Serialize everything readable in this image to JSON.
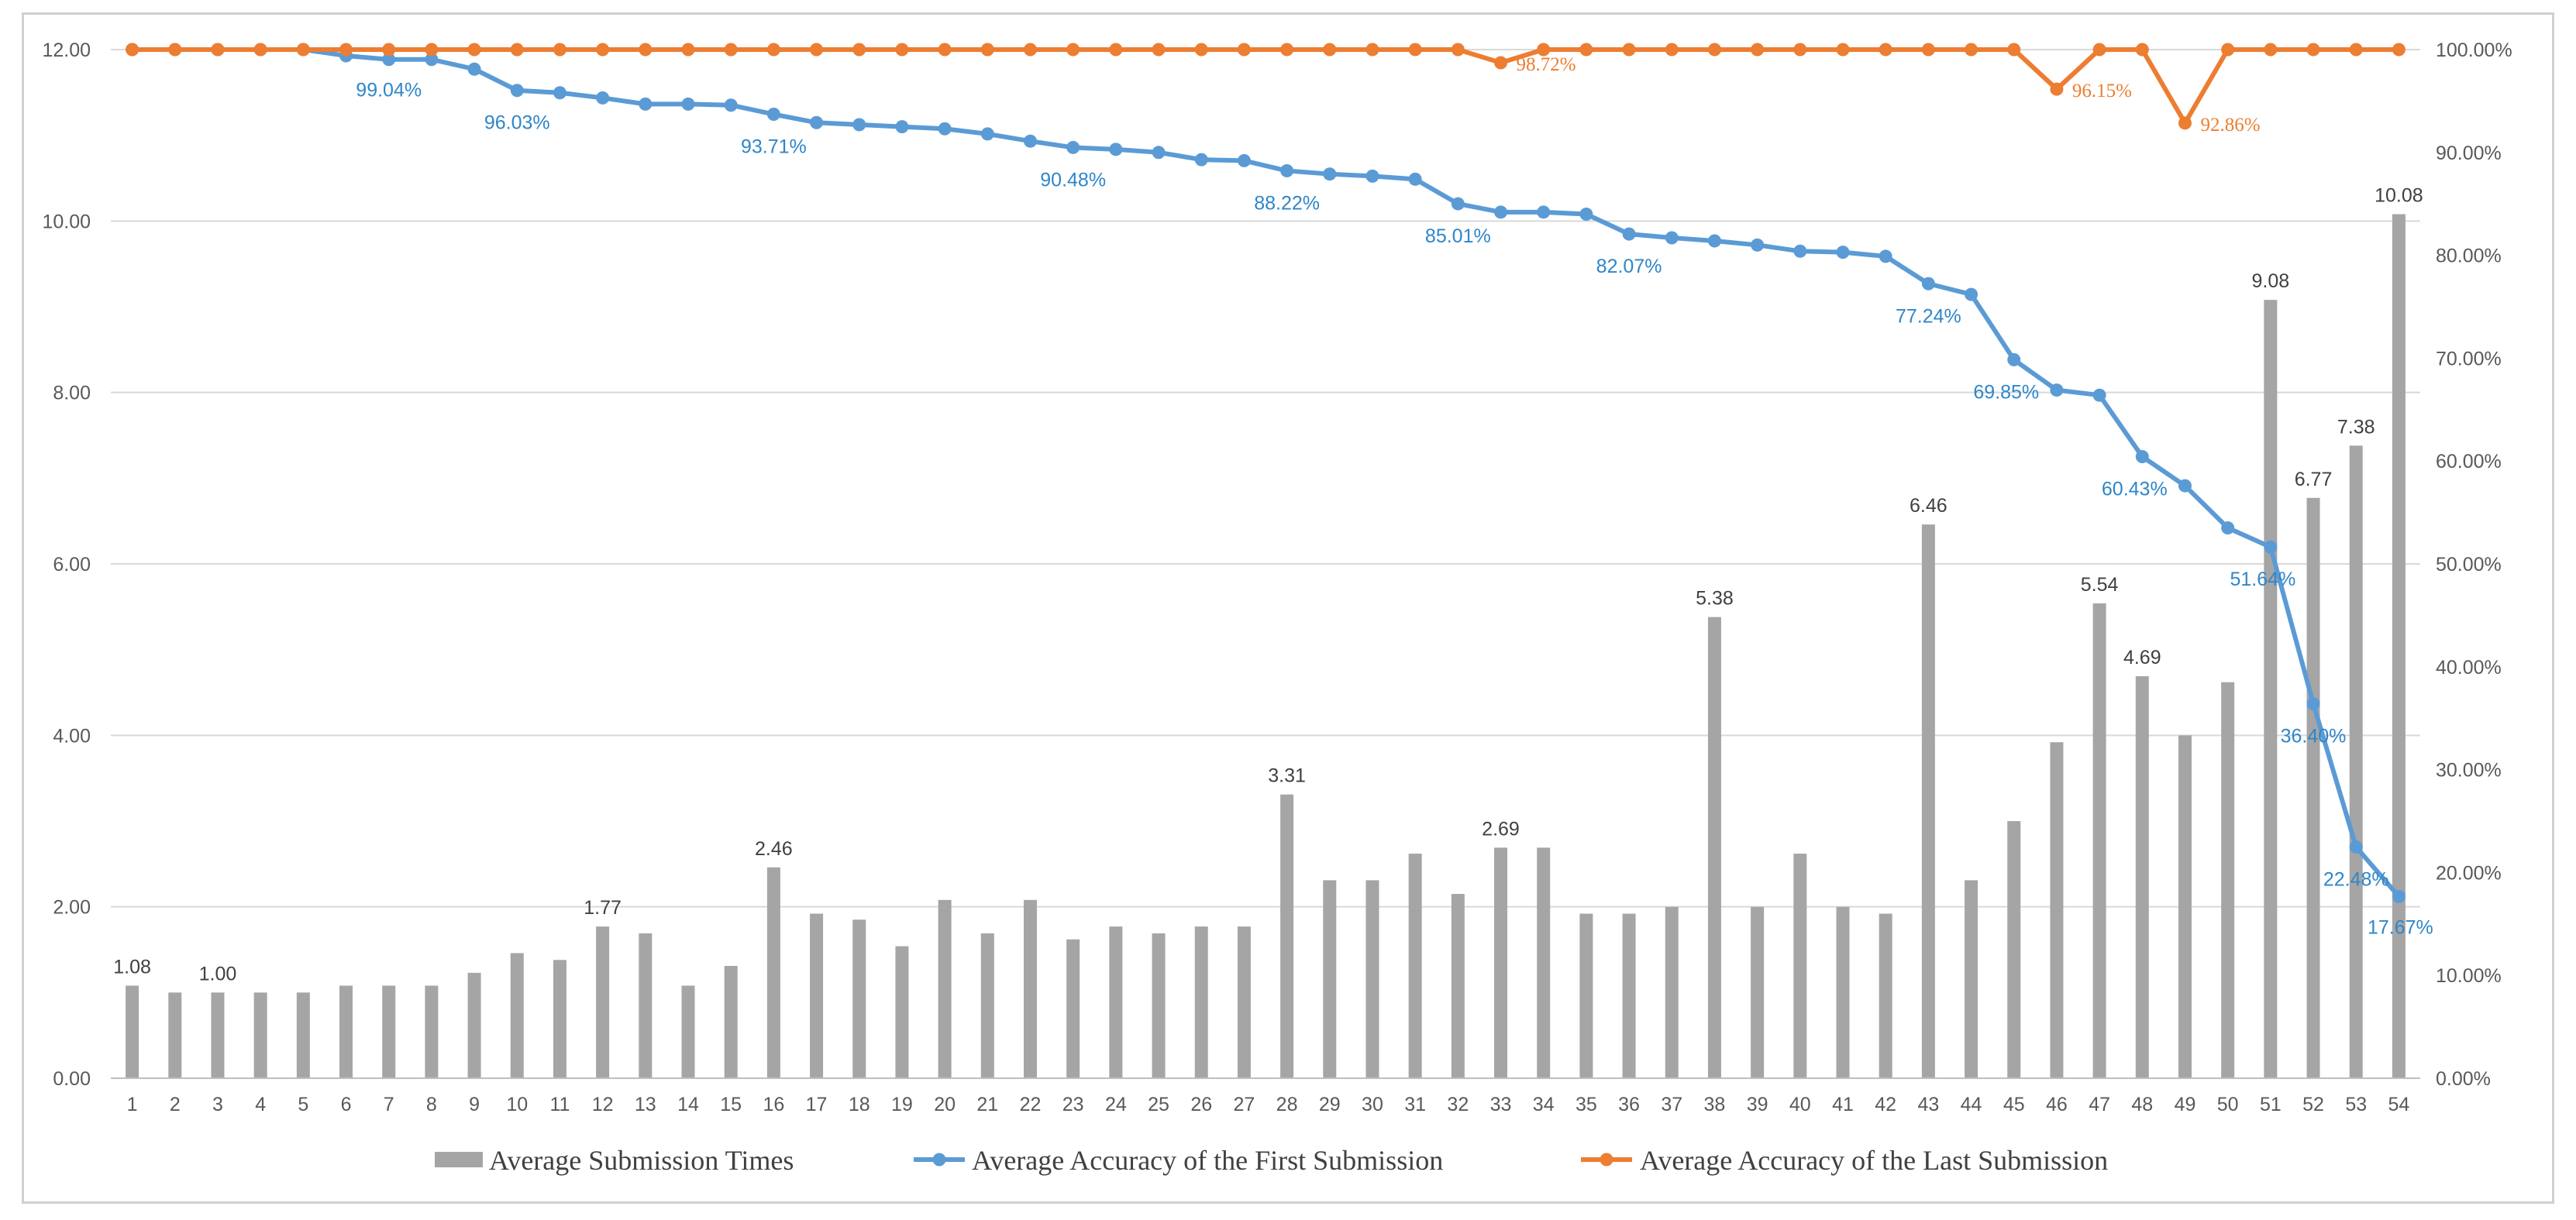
{
  "chart_data": {
    "type": "bar+line",
    "categories": [
      "1",
      "2",
      "3",
      "4",
      "5",
      "6",
      "7",
      "8",
      "9",
      "10",
      "11",
      "12",
      "13",
      "14",
      "15",
      "16",
      "17",
      "18",
      "19",
      "20",
      "21",
      "22",
      "23",
      "24",
      "25",
      "26",
      "27",
      "28",
      "29",
      "30",
      "31",
      "32",
      "33",
      "34",
      "35",
      "36",
      "37",
      "38",
      "39",
      "40",
      "41",
      "42",
      "43",
      "44",
      "45",
      "46",
      "47",
      "48",
      "49",
      "50",
      "51",
      "52",
      "53",
      "54"
    ],
    "left_axis": {
      "min": 0,
      "max": 12,
      "ticks": [
        "0.00",
        "2.00",
        "4.00",
        "6.00",
        "8.00",
        "10.00",
        "12.00"
      ]
    },
    "right_axis": {
      "min": 0,
      "max": 100,
      "ticks": [
        "0.00%",
        "10.00%",
        "20.00%",
        "30.00%",
        "40.00%",
        "50.00%",
        "60.00%",
        "70.00%",
        "80.00%",
        "90.00%",
        "100.00%"
      ]
    },
    "series": [
      {
        "name": "Average Submission Times",
        "kind": "bar",
        "axis": "left",
        "color": "#a5a5a5",
        "values": [
          1.08,
          1.0,
          1.0,
          1.0,
          1.0,
          1.08,
          1.08,
          1.08,
          1.23,
          1.46,
          1.38,
          1.77,
          1.69,
          1.08,
          1.31,
          2.46,
          1.92,
          1.85,
          1.54,
          2.08,
          1.69,
          2.08,
          1.62,
          1.77,
          1.69,
          1.77,
          1.77,
          3.31,
          2.31,
          2.31,
          2.62,
          2.15,
          2.69,
          2.69,
          1.92,
          1.92,
          2.0,
          5.38,
          2.0,
          2.62,
          2.0,
          1.92,
          6.46,
          2.31,
          3.0,
          3.92,
          5.54,
          4.69,
          4.0,
          4.62,
          9.08,
          6.77,
          7.38,
          10.08
        ],
        "labels": [
          {
            "index": 0,
            "text": "1.08"
          },
          {
            "index": 2,
            "text": "1.00"
          },
          {
            "index": 11,
            "text": "1.77"
          },
          {
            "index": 15,
            "text": "2.46"
          },
          {
            "index": 27,
            "text": "3.31"
          },
          {
            "index": 32,
            "text": "2.69"
          },
          {
            "index": 37,
            "text": "5.38"
          },
          {
            "index": 42,
            "text": "6.46"
          },
          {
            "index": 46,
            "text": "5.54"
          },
          {
            "index": 47,
            "text": "4.69"
          },
          {
            "index": 50,
            "text": "9.08"
          },
          {
            "index": 51,
            "text": "6.77"
          },
          {
            "index": 52,
            "text": "7.38"
          },
          {
            "index": 53,
            "text": "10.08"
          }
        ]
      },
      {
        "name": "Average Accuracy of the First Submission",
        "kind": "line",
        "axis": "right",
        "color": "#5b9bd5",
        "label_color": "#2e86c9",
        "values": [
          100,
          100,
          100,
          100,
          100,
          99.4,
          99.04,
          99.04,
          98.1,
          96.03,
          95.8,
          95.3,
          94.7,
          94.7,
          94.6,
          93.71,
          92.9,
          92.7,
          92.5,
          92.3,
          91.8,
          91.1,
          90.48,
          90.3,
          90.0,
          89.3,
          89.2,
          88.22,
          87.9,
          87.7,
          87.4,
          85.01,
          84.2,
          84.2,
          84.0,
          82.07,
          81.7,
          81.4,
          81.0,
          80.4,
          80.3,
          79.9,
          77.24,
          76.2,
          69.85,
          66.9,
          66.4,
          60.43,
          57.6,
          53.5,
          51.64,
          36.4,
          22.48,
          17.67
        ],
        "labels": [
          {
            "index": 6,
            "text": "99.04%"
          },
          {
            "index": 9,
            "text": "96.03%"
          },
          {
            "index": 15,
            "text": "93.71%"
          },
          {
            "index": 22,
            "text": "90.48%"
          },
          {
            "index": 27,
            "text": "88.22%"
          },
          {
            "index": 31,
            "text": "85.01%"
          },
          {
            "index": 35,
            "text": "82.07%"
          },
          {
            "index": 42,
            "text": "77.24%"
          },
          {
            "index": 44,
            "text": "69.85%"
          },
          {
            "index": 47,
            "text": "60.43%"
          },
          {
            "index": 50,
            "text": "51.64%"
          },
          {
            "index": 51,
            "text": "36.40%"
          },
          {
            "index": 52,
            "text": "22.48%"
          },
          {
            "index": 53,
            "text": "17.67%"
          }
        ]
      },
      {
        "name": "Average Accuracy of the Last Submission",
        "kind": "line",
        "axis": "right",
        "color": "#ed7d31",
        "label_color": "#ed7d31",
        "values": [
          100,
          100,
          100,
          100,
          100,
          100,
          100,
          100,
          100,
          100,
          100,
          100,
          100,
          100,
          100,
          100,
          100,
          100,
          100,
          100,
          100,
          100,
          100,
          100,
          100,
          100,
          100,
          100,
          100,
          100,
          100,
          100,
          98.72,
          100,
          100,
          100,
          100,
          100,
          100,
          100,
          100,
          100,
          100,
          100,
          100,
          96.15,
          100,
          100,
          92.86,
          100,
          100,
          100,
          100,
          100
        ],
        "labels": [
          {
            "index": 32,
            "text": "98.72%"
          },
          {
            "index": 45,
            "text": "96.15%"
          },
          {
            "index": 48,
            "text": "92.86%"
          }
        ]
      }
    ],
    "legend_position": "bottom",
    "grid": "horizontal"
  }
}
